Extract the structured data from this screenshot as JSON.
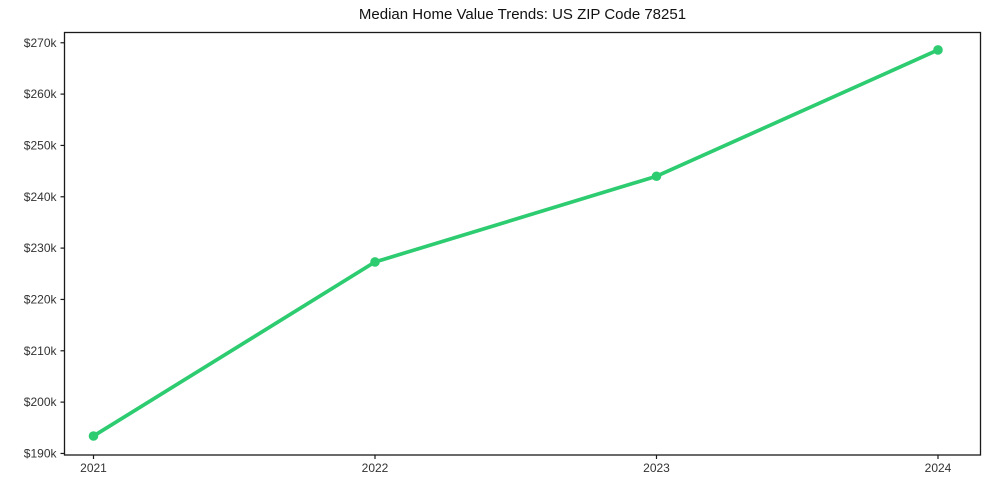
{
  "chart_data": {
    "type": "line",
    "title": "Median Home Value Trends: US ZIP Code 78251",
    "xlabel": "",
    "ylabel": "",
    "x": [
      2021,
      2022,
      2023,
      2024
    ],
    "x_tick_labels": [
      "2021",
      "2022",
      "2023",
      "2024"
    ],
    "series": [
      {
        "name": "median-home-value",
        "values": [
          193400,
          227300,
          244000,
          268600
        ],
        "color": "#2ecc71",
        "marker": "circle"
      }
    ],
    "y_ticks": [
      190000,
      200000,
      210000,
      220000,
      230000,
      240000,
      250000,
      260000,
      270000
    ],
    "y_tick_labels": [
      "$190k",
      "$200k",
      "$210k",
      "$220k",
      "$230k",
      "$240k",
      "$250k",
      "$260k",
      "$270k"
    ],
    "xlim": [
      2020.897,
      2024.151
    ],
    "ylim": [
      189700,
      272000
    ],
    "grid": false,
    "legend": false,
    "background": "#ffffff",
    "axis_color": "#1a1a1a",
    "tick_label_color": "#333333"
  }
}
